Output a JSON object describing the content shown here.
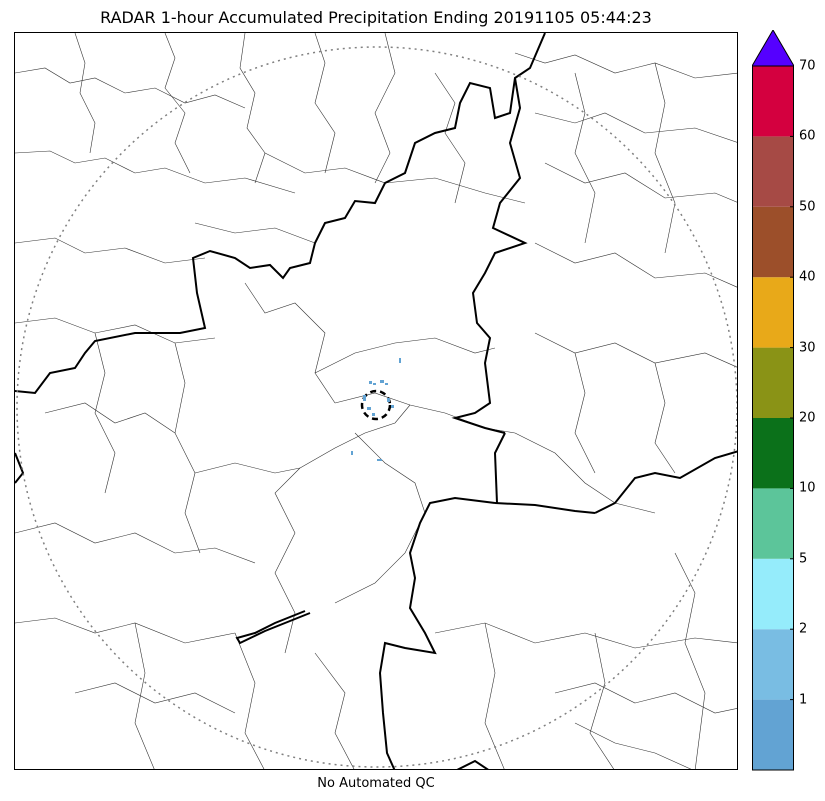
{
  "title": "RADAR 1-hour Accumulated Precipitation Ending 20191105 05:44:23",
  "footer": "No Automated QC",
  "colorbar": {
    "bins": [
      {
        "from": 0,
        "to": 1,
        "color": "#62a3d3"
      },
      {
        "from": 1,
        "to": 2,
        "color": "#79bde3"
      },
      {
        "from": 2,
        "to": 5,
        "color": "#95ecfb"
      },
      {
        "from": 5,
        "to": 10,
        "color": "#5cc59a"
      },
      {
        "from": 10,
        "to": 20,
        "color": "#0b711a"
      },
      {
        "from": 20,
        "to": 30,
        "color": "#8a9316"
      },
      {
        "from": 30,
        "to": 40,
        "color": "#e8a919"
      },
      {
        "from": 40,
        "to": 50,
        "color": "#9c4f2a"
      },
      {
        "from": 50,
        "to": 60,
        "color": "#a64a45"
      },
      {
        "from": 60,
        "to": 70,
        "color": "#d4003f"
      }
    ],
    "labels": [
      "1",
      "2",
      "5",
      "10",
      "20",
      "30",
      "40",
      "50",
      "60",
      "70"
    ],
    "extend_color": "#5500ff"
  },
  "range_ring_color": "#808080",
  "precip_color": "#62a3d3"
}
